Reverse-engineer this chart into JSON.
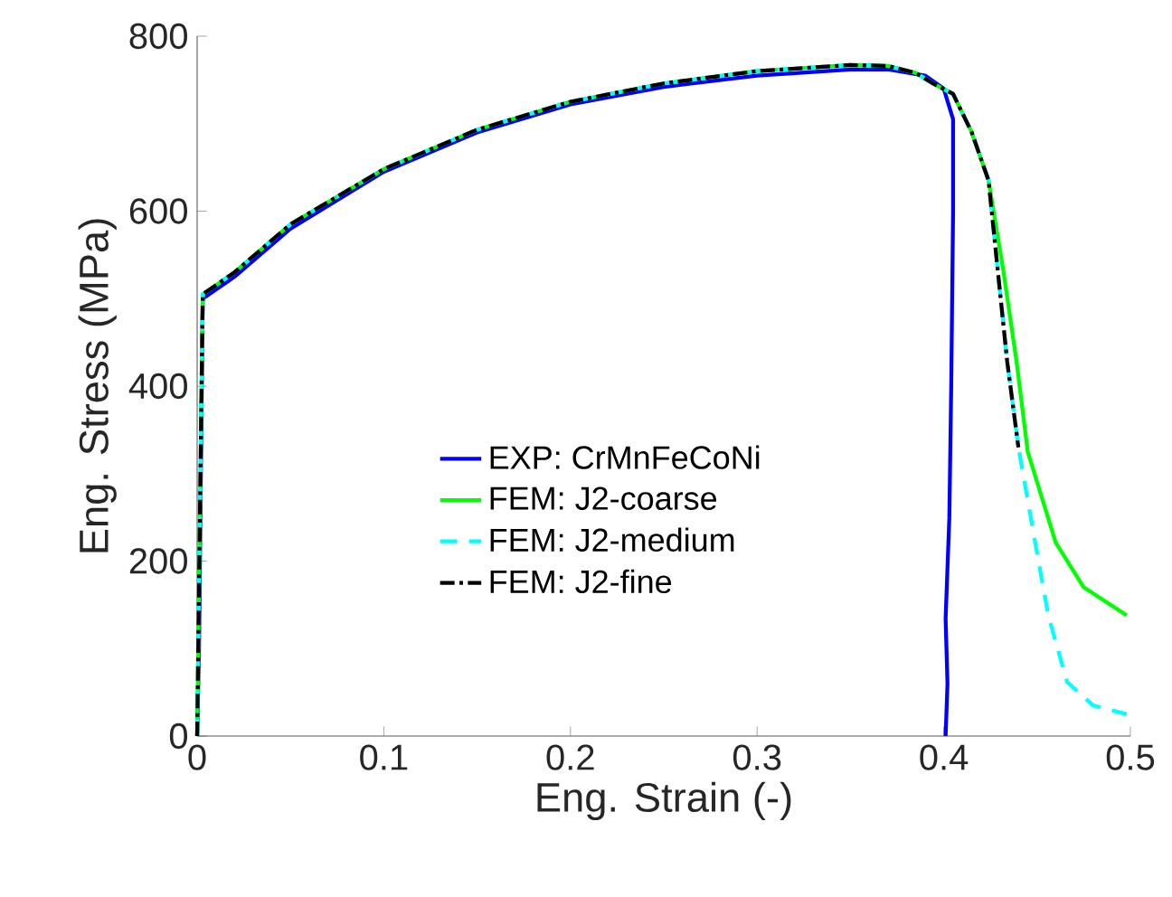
{
  "chart_data": {
    "type": "line",
    "xlabel": "Eng. Strain (-)",
    "ylabel": "Eng. Stress (MPa)",
    "xlim": [
      0,
      0.5
    ],
    "ylim": [
      0,
      800
    ],
    "xticks": [
      0,
      0.1,
      0.2,
      0.3,
      0.4,
      0.5
    ],
    "yticks": [
      0,
      200,
      400,
      600,
      800
    ],
    "grid": false,
    "legend": "bottom",
    "marker": "none",
    "series": [
      {
        "name": "EXP: CrMnFeCoNi",
        "color": "#0000ff",
        "line_style": "solid",
        "x": [
          0,
          0.001,
          0.003,
          0.02,
          0.05,
          0.1,
          0.15,
          0.2,
          0.25,
          0.3,
          0.35,
          0.37,
          0.39,
          0.4,
          0.405,
          0.405,
          0.404,
          0.403,
          0.401,
          0.402,
          0.401
        ],
        "values": [
          0,
          100,
          500,
          525,
          580,
          645,
          690,
          722,
          742,
          755,
          762,
          762,
          755,
          740,
          705,
          600,
          400,
          250,
          134,
          60,
          0
        ]
      },
      {
        "name": "FEM: J2-coarse",
        "color": "#00ff00",
        "line_style": "solid",
        "x": [
          0,
          0.003,
          0.02,
          0.05,
          0.1,
          0.15,
          0.2,
          0.25,
          0.3,
          0.35,
          0.37,
          0.385,
          0.395,
          0.405,
          0.415,
          0.424,
          0.432,
          0.439,
          0.445,
          0.46,
          0.475,
          0.498
        ],
        "values": [
          0,
          505,
          530,
          585,
          648,
          693,
          725,
          746,
          760,
          767,
          766,
          758,
          745,
          734,
          690,
          635,
          531,
          428,
          325,
          221,
          170,
          138
        ]
      },
      {
        "name": "FEM: J2-medium",
        "color": "#00ffff",
        "line_style": "dashed",
        "x": [
          0,
          0.003,
          0.02,
          0.05,
          0.1,
          0.15,
          0.2,
          0.25,
          0.3,
          0.35,
          0.37,
          0.385,
          0.395,
          0.405,
          0.415,
          0.424,
          0.429,
          0.434,
          0.44,
          0.449,
          0.456,
          0.466,
          0.48,
          0.498
        ],
        "values": [
          0,
          505,
          530,
          585,
          648,
          693,
          725,
          746,
          760,
          767,
          766,
          758,
          745,
          734,
          690,
          635,
          531,
          428,
          330,
          221,
          138,
          62,
          35,
          25
        ]
      },
      {
        "name": "FEM: J2-fine",
        "color": "#000000",
        "line_style": "dashdot",
        "x": [
          0,
          0.003,
          0.02,
          0.05,
          0.1,
          0.15,
          0.2,
          0.25,
          0.3,
          0.35,
          0.37,
          0.385,
          0.395,
          0.405,
          0.415,
          0.424,
          0.429,
          0.434,
          0.44
        ],
        "values": [
          0,
          505,
          530,
          585,
          648,
          693,
          725,
          746,
          760,
          767,
          766,
          758,
          745,
          734,
          690,
          635,
          531,
          428,
          330
        ]
      }
    ]
  }
}
